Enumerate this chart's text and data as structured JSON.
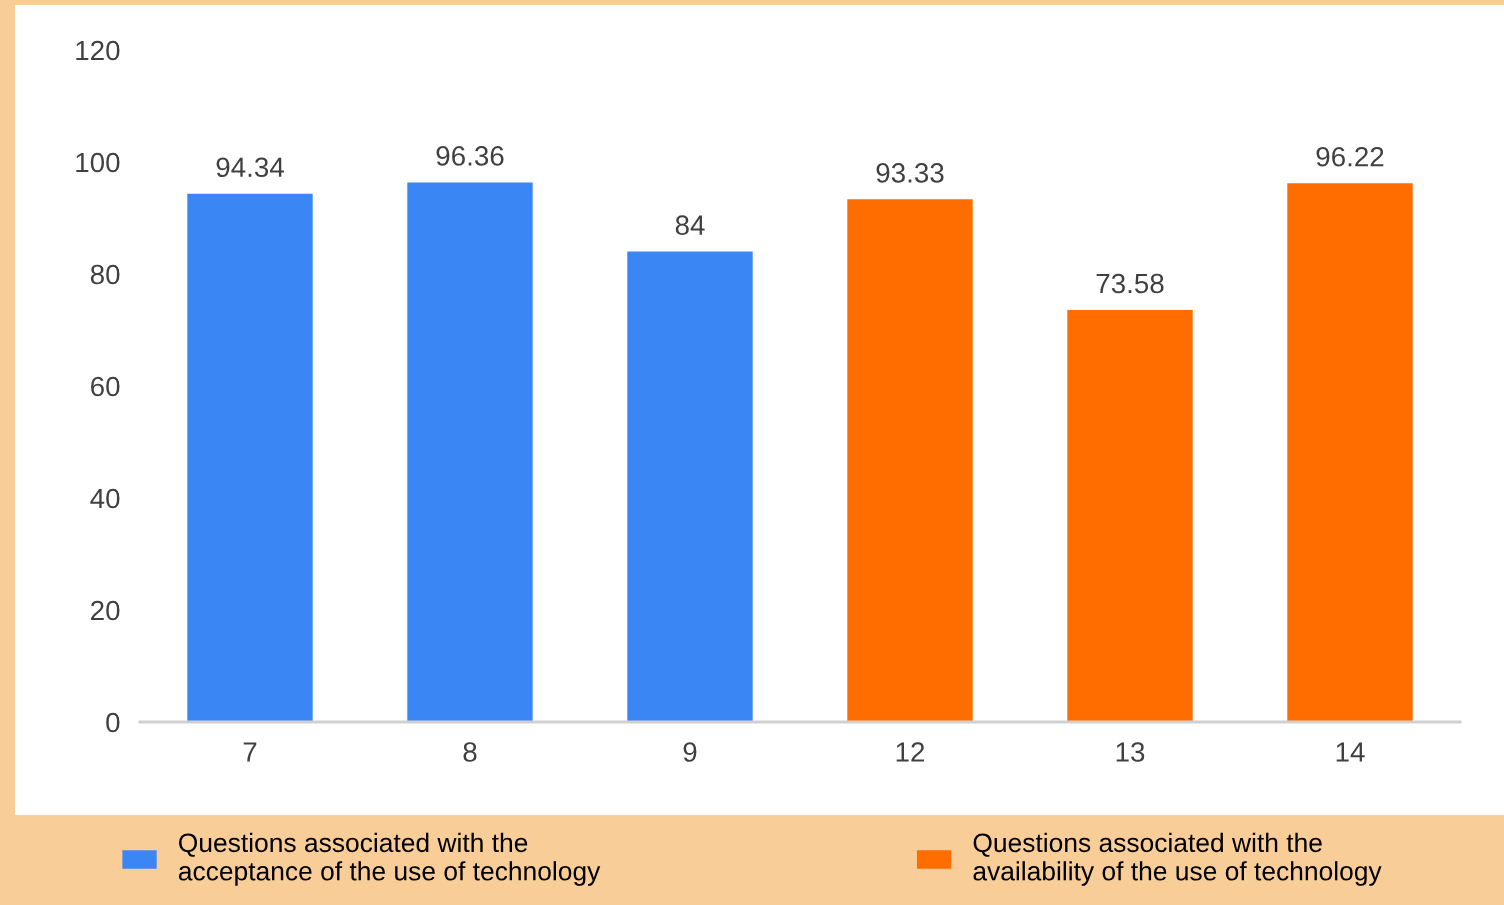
{
  "chart_data": {
    "type": "bar",
    "categories": [
      "7",
      "8",
      "9",
      "12",
      "13",
      "14"
    ],
    "series": [
      {
        "name": "Questions associated with the\nacceptance of the use of technology",
        "color": "#3a86f4",
        "values": [
          94.34,
          96.36,
          84,
          null,
          null,
          null
        ]
      },
      {
        "name": "Questions associated with the\navailability of the use of technology",
        "color": "#ff6d00",
        "values": [
          null,
          null,
          null,
          93.33,
          73.58,
          96.22
        ]
      }
    ],
    "ylim": [
      0,
      120
    ],
    "yticks": [
      0,
      20,
      40,
      60,
      80,
      100,
      120
    ],
    "data_labels": true,
    "grid": false,
    "legend": "bottom"
  }
}
